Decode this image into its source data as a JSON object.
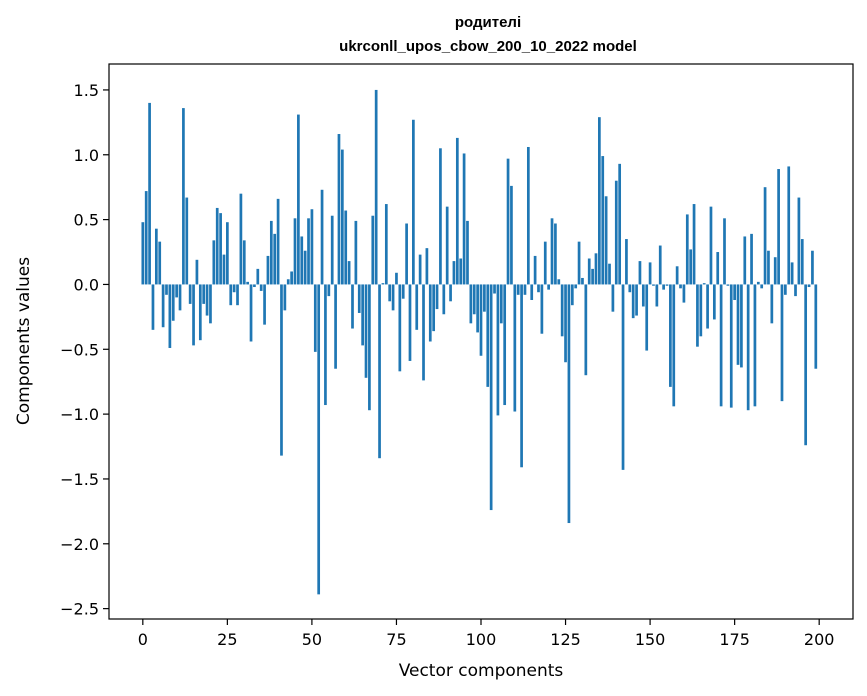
{
  "chart_data": {
    "type": "bar",
    "title": [
      "родителі",
      "ukrconll_upos_cbow_200_10_2022 model"
    ],
    "xlabel": "Vector components",
    "ylabel": "Components values",
    "xlim": [
      -10,
      210
    ],
    "ylim": [
      -2.58,
      1.7
    ],
    "xticks": [
      0,
      25,
      50,
      75,
      100,
      125,
      150,
      175,
      200
    ],
    "xtick_labels": [
      "0",
      "25",
      "50",
      "75",
      "100",
      "125",
      "150",
      "175",
      "200"
    ],
    "yticks": [
      1.5,
      1.0,
      0.5,
      0.0,
      -0.5,
      -1.0,
      -1.5,
      -2.0,
      -2.5
    ],
    "ytick_labels": [
      "1.5",
      "1.0",
      "0.5",
      "0.0",
      "−0.5",
      "−1.0",
      "−1.5",
      "−2.0",
      "−2.5"
    ],
    "grid": false,
    "color": "#1f77b4",
    "x": [
      0,
      1,
      2,
      3,
      4,
      5,
      6,
      7,
      8,
      9,
      10,
      11,
      12,
      13,
      14,
      15,
      16,
      17,
      18,
      19,
      20,
      21,
      22,
      23,
      24,
      25,
      26,
      27,
      28,
      29,
      30,
      31,
      32,
      33,
      34,
      35,
      36,
      37,
      38,
      39,
      40,
      41,
      42,
      43,
      44,
      45,
      46,
      47,
      48,
      49,
      50,
      51,
      52,
      53,
      54,
      55,
      56,
      57,
      58,
      59,
      60,
      61,
      62,
      63,
      64,
      65,
      66,
      67,
      68,
      69,
      70,
      71,
      72,
      73,
      74,
      75,
      76,
      77,
      78,
      79,
      80,
      81,
      82,
      83,
      84,
      85,
      86,
      87,
      88,
      89,
      90,
      91,
      92,
      93,
      94,
      95,
      96,
      97,
      98,
      99,
      100,
      101,
      102,
      103,
      104,
      105,
      106,
      107,
      108,
      109,
      110,
      111,
      112,
      113,
      114,
      115,
      116,
      117,
      118,
      119,
      120,
      121,
      122,
      123,
      124,
      125,
      126,
      127,
      128,
      129,
      130,
      131,
      132,
      133,
      134,
      135,
      136,
      137,
      138,
      139,
      140,
      141,
      142,
      143,
      144,
      145,
      146,
      147,
      148,
      149,
      150,
      151,
      152,
      153,
      154,
      155,
      156,
      157,
      158,
      159,
      160,
      161,
      162,
      163,
      164,
      165,
      166,
      167,
      168,
      169,
      170,
      171,
      172,
      173,
      174,
      175,
      176,
      177,
      178,
      179,
      180,
      181,
      182,
      183,
      184,
      185,
      186,
      187,
      188,
      189,
      190,
      191,
      192,
      193,
      194,
      195,
      196,
      197,
      198,
      199
    ],
    "values": [
      0.48,
      0.72,
      1.4,
      -0.35,
      0.43,
      0.33,
      -0.33,
      -0.08,
      -0.49,
      -0.28,
      -0.1,
      -0.2,
      1.36,
      0.67,
      -0.15,
      -0.47,
      0.19,
      -0.43,
      -0.15,
      -0.24,
      -0.3,
      0.34,
      0.59,
      0.55,
      0.23,
      0.48,
      -0.16,
      -0.06,
      -0.16,
      0.7,
      0.34,
      0.02,
      -0.44,
      -0.02,
      0.12,
      -0.05,
      -0.31,
      0.22,
      0.49,
      0.39,
      0.66,
      -1.32,
      -0.2,
      0.04,
      0.1,
      0.51,
      1.31,
      0.37,
      0.26,
      0.51,
      0.58,
      -0.52,
      -2.39,
      0.73,
      -0.93,
      -0.09,
      0.53,
      -0.65,
      1.16,
      1.04,
      0.57,
      0.18,
      -0.34,
      0.49,
      -0.22,
      -0.47,
      -0.72,
      -0.97,
      0.53,
      1.5,
      -1.34,
      0.01,
      0.62,
      -0.13,
      -0.2,
      0.09,
      -0.67,
      -0.11,
      0.47,
      -0.59,
      1.27,
      -0.35,
      0.23,
      -0.74,
      0.28,
      -0.44,
      -0.36,
      -0.19,
      1.05,
      -0.23,
      0.6,
      -0.13,
      0.18,
      1.13,
      0.2,
      1.01,
      0.49,
      -0.3,
      -0.23,
      -0.37,
      -0.55,
      -0.21,
      -0.79,
      -1.74,
      -0.07,
      -1.01,
      -0.3,
      -0.93,
      0.97,
      0.76,
      -0.98,
      -0.08,
      -1.41,
      -0.08,
      1.06,
      -0.12,
      0.22,
      -0.06,
      -0.38,
      0.33,
      -0.04,
      0.51,
      0.47,
      0.04,
      -0.4,
      -0.6,
      -1.84,
      -0.16,
      -0.03,
      0.33,
      0.05,
      -0.7,
      0.2,
      0.12,
      0.24,
      1.29,
      0.99,
      0.68,
      0.16,
      -0.21,
      0.8,
      0.93,
      -1.43,
      0.35,
      -0.06,
      -0.26,
      -0.24,
      0.18,
      -0.17,
      -0.51,
      0.17,
      -0.01,
      -0.17,
      0.3,
      -0.04,
      -0.01,
      -0.79,
      -0.94,
      0.14,
      -0.03,
      -0.14,
      0.54,
      0.27,
      0.62,
      -0.48,
      -0.4,
      0.01,
      -0.34,
      0.6,
      -0.27,
      0.25,
      -0.94,
      0.51,
      -0.01,
      -0.95,
      -0.12,
      -0.62,
      -0.64,
      0.37,
      -0.97,
      0.39,
      -0.94,
      0.02,
      -0.03,
      0.75,
      0.26,
      -0.3,
      0.21,
      0.89,
      -0.9,
      -0.08,
      0.91,
      0.17,
      -0.09,
      0.67,
      0.35,
      -1.24,
      -0.02,
      0.26,
      -0.65
    ]
  }
}
